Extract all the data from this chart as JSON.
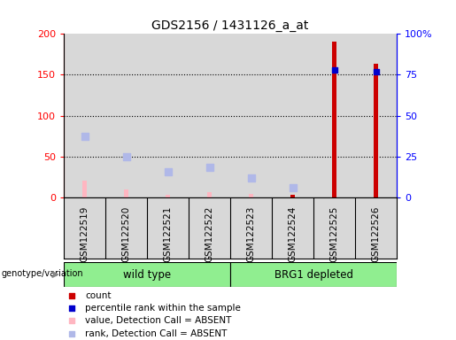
{
  "title": "GDS2156 / 1431126_a_at",
  "samples": [
    "GSM122519",
    "GSM122520",
    "GSM122521",
    "GSM122522",
    "GSM122523",
    "GSM122524",
    "GSM122525",
    "GSM122526"
  ],
  "count_values": [
    0,
    0,
    0,
    0,
    0,
    3,
    191,
    163
  ],
  "percentile_rank_pct": [
    null,
    null,
    null,
    null,
    null,
    null,
    78,
    77
  ],
  "absent_value": [
    20,
    9,
    3,
    6,
    4,
    null,
    null,
    null
  ],
  "absent_rank_left": [
    75,
    50,
    31,
    37,
    24,
    12,
    null,
    null
  ],
  "left_ylim": [
    0,
    200
  ],
  "right_ylim": [
    0,
    100
  ],
  "left_yticks": [
    0,
    50,
    100,
    150,
    200
  ],
  "right_yticks": [
    0,
    25,
    50,
    75,
    100
  ],
  "right_yticklabels": [
    "0",
    "25",
    "50",
    "75",
    "100%"
  ],
  "groups": [
    {
      "label": "wild type",
      "start": 0,
      "end": 3,
      "color": "#90EE90"
    },
    {
      "label": "BRG1 depleted",
      "start": 4,
      "end": 7,
      "color": "#90EE90"
    }
  ],
  "group_label": "genotype/variation",
  "count_color": "#CC0000",
  "rank_color": "#0000CC",
  "absent_value_color": "#FFB6C1",
  "absent_rank_color": "#B0B8E8",
  "bg_color": "#D8D8D8",
  "plot_bg": "white",
  "legend_items": [
    {
      "color": "#CC0000",
      "label": "count"
    },
    {
      "color": "#0000CC",
      "label": "percentile rank within the sample"
    },
    {
      "color": "#FFB6C1",
      "label": "value, Detection Call = ABSENT"
    },
    {
      "color": "#B0B8E8",
      "label": "rank, Detection Call = ABSENT"
    }
  ]
}
